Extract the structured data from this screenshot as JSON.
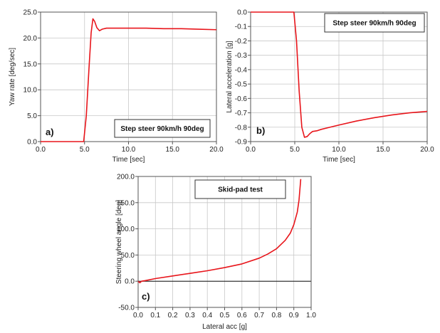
{
  "colors": {
    "curve": "#e8151b",
    "grid": "#c8c8c8",
    "axis": "#555555",
    "zero": "#111111"
  },
  "chart_data": [
    {
      "type": "line",
      "panel": "a)",
      "annotation": "Step steer 90km/h 90deg",
      "xlabel": "Time [sec]",
      "ylabel": "Yaw rate [deg/sec]",
      "xlim": [
        0,
        20
      ],
      "ylim": [
        0,
        25
      ],
      "xticks": [
        0,
        5,
        10,
        15,
        20
      ],
      "yticks": [
        0,
        5,
        10,
        15,
        20,
        25
      ],
      "xtick_labels": [
        "0.0",
        "5.0",
        "10.0",
        "15.0",
        "20.0"
      ],
      "ytick_labels": [
        "0.0",
        "5.0",
        "10.0",
        "15.0",
        "20.0",
        "25.0"
      ],
      "grid": true,
      "legend": "none",
      "x": [
        0,
        4.9,
        5.2,
        5.5,
        5.75,
        5.95,
        6.15,
        6.4,
        6.7,
        7.0,
        7.5,
        8.5,
        10,
        12,
        14,
        16,
        18,
        20
      ],
      "y": [
        0,
        0,
        5,
        14,
        21,
        23.7,
        23.2,
        22,
        21.4,
        21.7,
        21.9,
        21.9,
        21.9,
        21.9,
        21.8,
        21.8,
        21.7,
        21.6
      ]
    },
    {
      "type": "line",
      "panel": "b)",
      "annotation": "Step steer 90km/h 90deg",
      "xlabel": "Time [sec]",
      "ylabel": "Lateral acceleration [g]",
      "xlim": [
        0,
        20
      ],
      "ylim": [
        -0.9,
        0
      ],
      "xticks": [
        0,
        5,
        10,
        15,
        20
      ],
      "yticks": [
        0,
        -0.1,
        -0.2,
        -0.3,
        -0.4,
        -0.5,
        -0.6,
        -0.7,
        -0.8,
        -0.9
      ],
      "xtick_labels": [
        "0.0",
        "5.0",
        "10.0",
        "15.0",
        "20.0"
      ],
      "ytick_labels": [
        "0.0",
        "-0.1",
        "-0.2",
        "-0.3",
        "-0.4",
        "-0.5",
        "-0.6",
        "-0.7",
        "-0.8",
        "-0.9"
      ],
      "grid": true,
      "legend": "none",
      "x": [
        0,
        4.9,
        5.2,
        5.5,
        5.8,
        6.1,
        6.4,
        6.7,
        7.0,
        7.5,
        8,
        9,
        10,
        12,
        14,
        16,
        18,
        20
      ],
      "y": [
        0,
        0,
        -0.2,
        -0.55,
        -0.8,
        -0.87,
        -0.865,
        -0.845,
        -0.83,
        -0.825,
        -0.815,
        -0.8,
        -0.785,
        -0.757,
        -0.734,
        -0.715,
        -0.7,
        -0.69
      ]
    },
    {
      "type": "line",
      "panel": "c)",
      "annotation": "Skid-pad test",
      "xlabel": "Lateral acc [g]",
      "ylabel": "Steering wheel angle [deg]",
      "xlim": [
        0,
        1
      ],
      "ylim": [
        -50,
        200
      ],
      "xticks": [
        0,
        0.1,
        0.2,
        0.3,
        0.4,
        0.5,
        0.6,
        0.7,
        0.8,
        0.9,
        1.0
      ],
      "yticks": [
        -50,
        0,
        50,
        100,
        150,
        200
      ],
      "xtick_labels": [
        "0.0",
        "0.1",
        "0.2",
        "0.3",
        "0.4",
        "0.5",
        "0.6",
        "0.7",
        "0.8",
        "0.9",
        "1.0"
      ],
      "ytick_labels": [
        "-50.0",
        "0.0",
        "50.0",
        "100.0",
        "150.0",
        "200.0"
      ],
      "grid": true,
      "legend": "none",
      "x": [
        0,
        0.01,
        0.02,
        0.04,
        0.1,
        0.2,
        0.3,
        0.4,
        0.5,
        0.6,
        0.7,
        0.75,
        0.8,
        0.85,
        0.88,
        0.9,
        0.92,
        0.93,
        0.94
      ],
      "y": [
        0,
        -3,
        0,
        1,
        5,
        10,
        15,
        20,
        26,
        33,
        44,
        52,
        62,
        78,
        92,
        108,
        132,
        155,
        195
      ]
    }
  ]
}
